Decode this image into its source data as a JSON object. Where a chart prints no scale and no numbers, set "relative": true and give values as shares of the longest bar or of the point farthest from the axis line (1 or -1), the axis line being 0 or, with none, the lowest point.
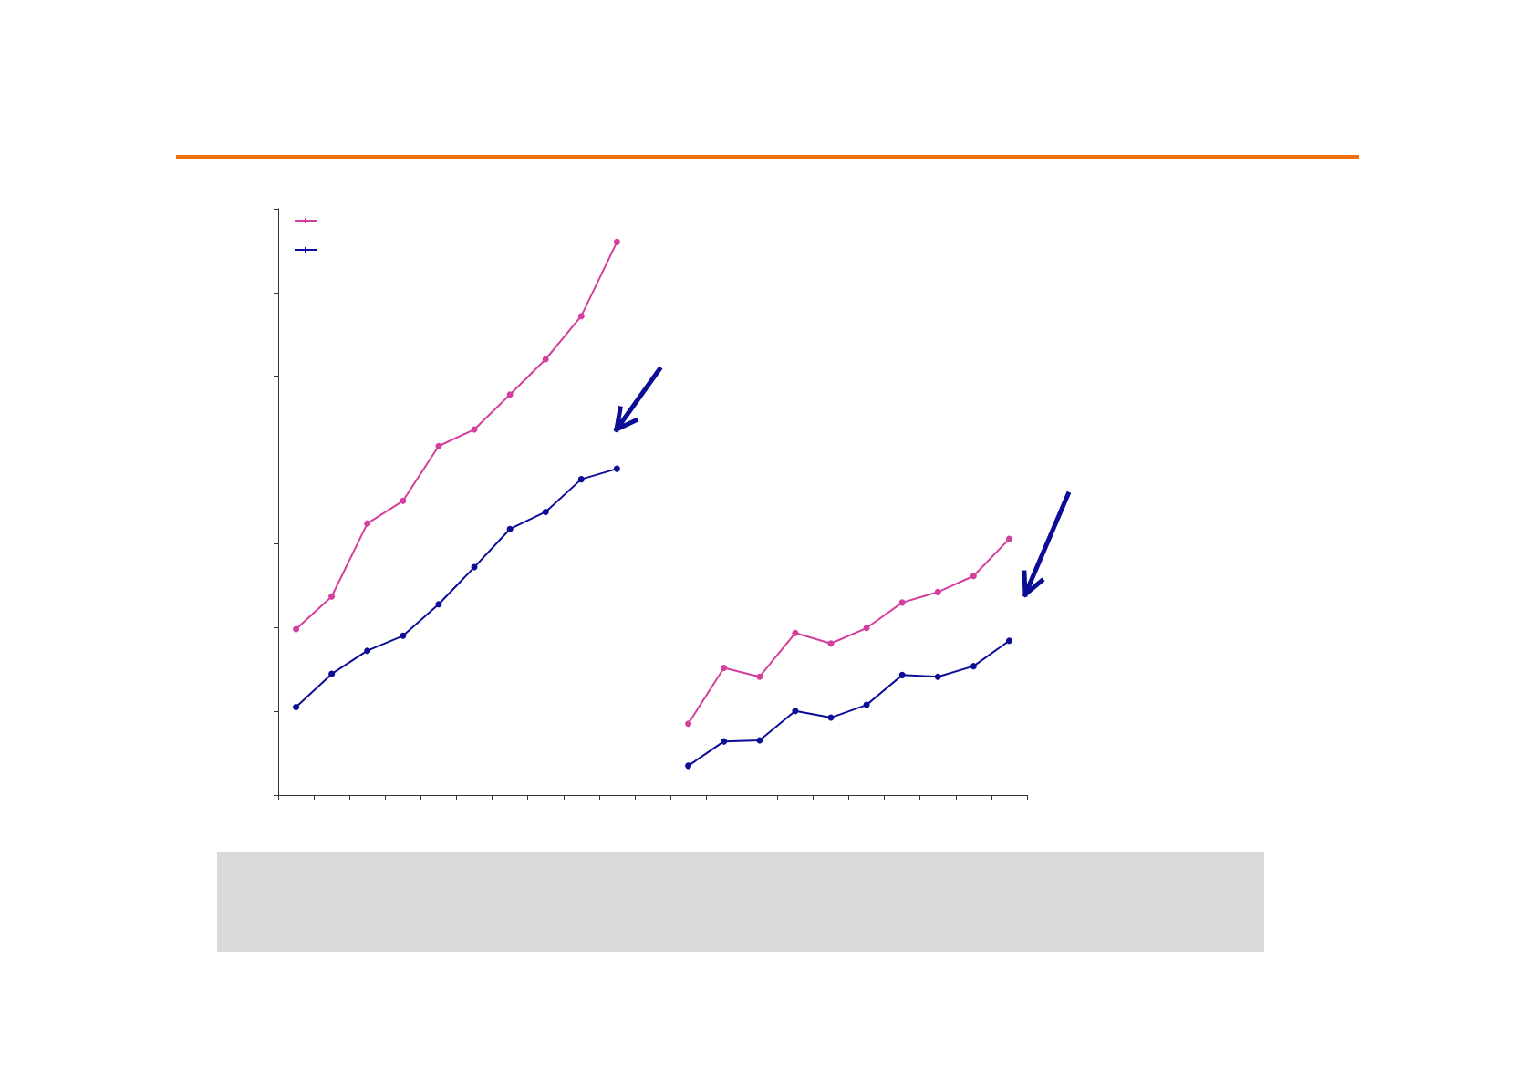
{
  "chart_data": {
    "type": "line",
    "relative": true,
    "categories": [
      null,
      null,
      null,
      null,
      null,
      null,
      null,
      null,
      null,
      null,
      null,
      null,
      null,
      null,
      null,
      null,
      null,
      null,
      null,
      null,
      null
    ],
    "series": [
      {
        "color": "#d43f9e",
        "values": [
          0.3,
          0.359,
          0.491,
          0.532,
          0.631,
          0.661,
          0.724,
          0.788,
          0.866,
          1,
          null,
          null,
          null,
          null,
          null,
          null,
          null,
          null,
          null,
          null,
          null
        ]
      },
      {
        "color": "#0c0c96",
        "values": [
          0.159,
          0.219,
          0.261,
          0.288,
          0.345,
          0.412,
          0.481,
          0.512,
          0.571,
          0.59,
          null,
          null,
          null,
          null,
          null,
          null,
          null,
          null,
          null,
          null,
          null
        ]
      },
      {
        "color": "#d43f9e",
        "values": [
          null,
          null,
          null,
          null,
          null,
          null,
          null,
          null,
          null,
          null,
          null,
          0.129,
          0.23,
          0.214,
          0.293,
          0.274,
          0.302,
          0.348,
          0.367,
          0.396,
          0.463
        ]
      },
      {
        "color": "#0c0c96",
        "values": [
          null,
          null,
          null,
          null,
          null,
          null,
          null,
          null,
          null,
          null,
          null,
          0.053,
          0.097,
          0.099,
          0.152,
          0.14,
          0.163,
          0.217,
          0.214,
          0.233,
          0.279
        ]
      }
    ],
    "marker": "circle",
    "line_style": "solid",
    "grid": false,
    "tick_labels": false
  }
}
